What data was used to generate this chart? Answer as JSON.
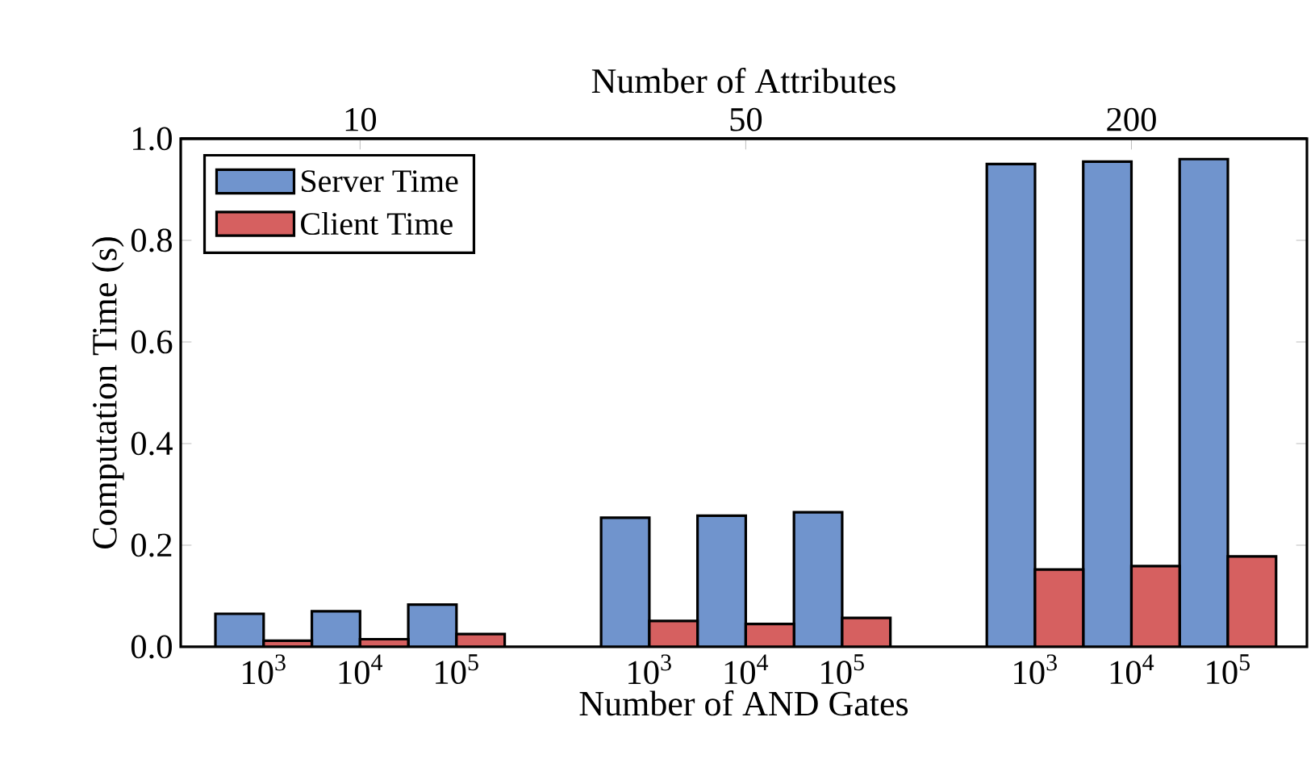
{
  "chart_data": {
    "type": "bar",
    "xlabel": "Number of AND Gates",
    "ylabel": "Computation Time (s)",
    "x2label": "Number of Attributes",
    "categories": [
      "10$^{3}$",
      "10$^{4}$",
      "10$^{5}$",
      null,
      "10$^{3}$",
      "10$^{4}$",
      "10$^{5}$",
      null,
      "10$^{3}$",
      "10$^{4}$",
      "10$^{5}$"
    ],
    "annotations": [
      "10",
      "50",
      "200"
    ],
    "series": [
      {
        "name": "Server Time",
        "color": "#7094cd",
        "values": [
          0.065,
          0.07,
          0.083,
          null,
          0.254,
          0.258,
          0.265,
          null,
          0.95,
          0.955,
          0.96
        ]
      },
      {
        "name": "Client Time",
        "color": "#d66060",
        "values": [
          0.012,
          0.015,
          0.025,
          null,
          0.051,
          0.045,
          0.057,
          null,
          0.152,
          0.159,
          0.178
        ]
      }
    ],
    "ylim": [
      0,
      1
    ],
    "yticks": [
      {
        "value": 0,
        "label": "0.0"
      },
      {
        "value": 0.2,
        "label": "0.2"
      },
      {
        "value": 0.4,
        "label": "0.4"
      },
      {
        "value": 0.6,
        "label": "0.6"
      },
      {
        "value": 0.8,
        "label": "0.8"
      },
      {
        "value": 1,
        "label": "1.0"
      }
    ],
    "legend": "top left",
    "grid": false
  }
}
